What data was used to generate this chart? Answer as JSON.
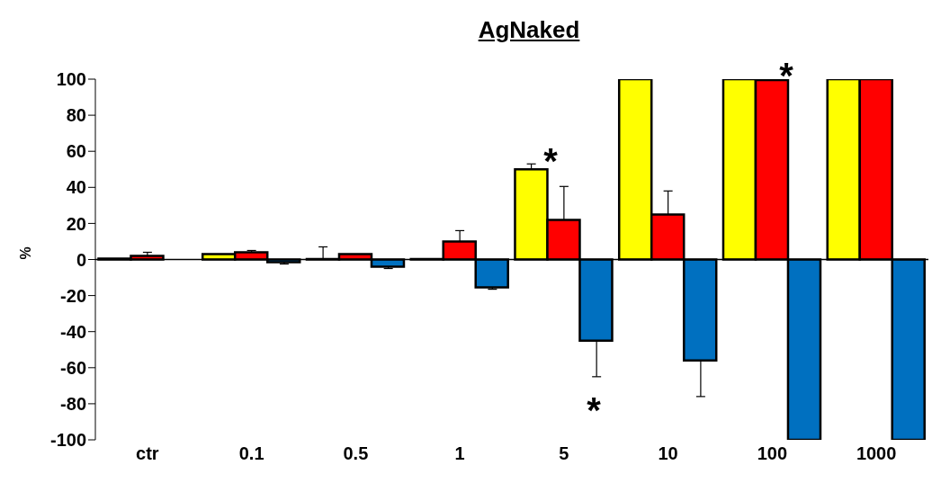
{
  "chart_data": {
    "type": "bar",
    "title": "AgNaked",
    "ylabel": "%",
    "categories": [
      "ctr",
      "0.1",
      "0.5",
      "1",
      "5",
      "10",
      "100",
      "1000"
    ],
    "series": [
      {
        "color": "#ffff00",
        "values": [
          0.5,
          3,
          0.3,
          0.3,
          50,
          100,
          100,
          100
        ],
        "errors": [
          null,
          null,
          [
            0.3,
            7
          ],
          null,
          [
            50,
            53
          ],
          null,
          null,
          null
        ]
      },
      {
        "color": "#ff0000",
        "values": [
          2,
          4,
          3,
          10,
          22,
          25,
          99.5,
          100
        ],
        "errors": [
          [
            2,
            4
          ],
          [
            4,
            5
          ],
          null,
          [
            10,
            16
          ],
          [
            22,
            40.5
          ],
          [
            25,
            38
          ],
          null,
          null
        ]
      },
      {
        "color": "#0070c0",
        "values": [
          0,
          -1.5,
          -4,
          -15.5,
          -45,
          -56,
          -100,
          -100
        ],
        "errors": [
          null,
          [
            -2.5,
            -1.5
          ],
          [
            -5,
            -4
          ],
          [
            -16.5,
            -15.5
          ],
          [
            -65,
            -45
          ],
          [
            -76,
            -56
          ],
          null,
          null
        ]
      }
    ],
    "ylim": [
      -100,
      100
    ],
    "yticks": [
      -100,
      -80,
      -60,
      -40,
      -20,
      0,
      20,
      40,
      60,
      80,
      100
    ],
    "legend": false,
    "annotations": [
      "*",
      "*",
      "*"
    ]
  }
}
